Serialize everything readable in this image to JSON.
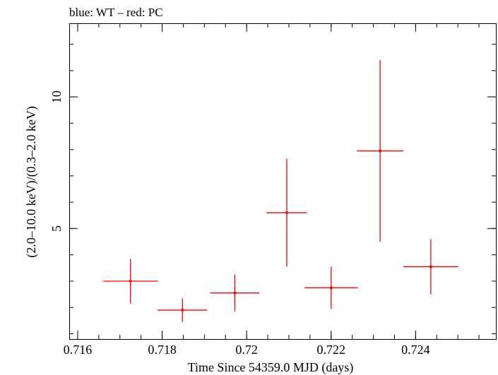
{
  "chart_data": {
    "type": "scatter",
    "title": "blue: WT – red: PC",
    "xlabel": "Time Since 54359.0 MJD (days)",
    "ylabel": "(2.0–10.0 keV)/(0.3–2.0 keV)",
    "xlim": [
      0.7158,
      0.7259
    ],
    "ylim": [
      0.8,
      12.8
    ],
    "x_ticks": [
      0.716,
      0.718,
      0.72,
      0.722,
      0.724
    ],
    "x_tick_labels": [
      "0.716",
      "0.718",
      "0.72",
      "0.722",
      "0.724"
    ],
    "y_ticks": [
      5,
      10
    ],
    "y_tick_labels": [
      "5",
      "10"
    ],
    "x_minor_step": 0.0005,
    "y_minor_step": 1,
    "grid": false,
    "series": [
      {
        "color": "#ff0000",
        "points": [
          {
            "x": 0.71725,
            "y": 3.0,
            "xerr": 0.00065,
            "yerr_low": 0.85,
            "yerr_high": 0.85
          },
          {
            "x": 0.71848,
            "y": 1.9,
            "xerr": 0.00059,
            "yerr_low": 0.45,
            "yerr_high": 0.45
          },
          {
            "x": 0.71972,
            "y": 2.55,
            "xerr": 0.00058,
            "yerr_low": 0.7,
            "yerr_high": 0.7
          },
          {
            "x": 0.72095,
            "y": 5.6,
            "xerr": 0.00048,
            "yerr_low": 2.05,
            "yerr_high": 2.05
          },
          {
            "x": 0.722,
            "y": 2.75,
            "xerr": 0.00063,
            "yerr_low": 0.8,
            "yerr_high": 0.8
          },
          {
            "x": 0.72316,
            "y": 7.95,
            "xerr": 0.00055,
            "yerr_low": 3.45,
            "yerr_high": 3.45
          },
          {
            "x": 0.72436,
            "y": 3.55,
            "xerr": 0.00065,
            "yerr_low": 1.05,
            "yerr_high": 1.05
          }
        ]
      }
    ]
  }
}
